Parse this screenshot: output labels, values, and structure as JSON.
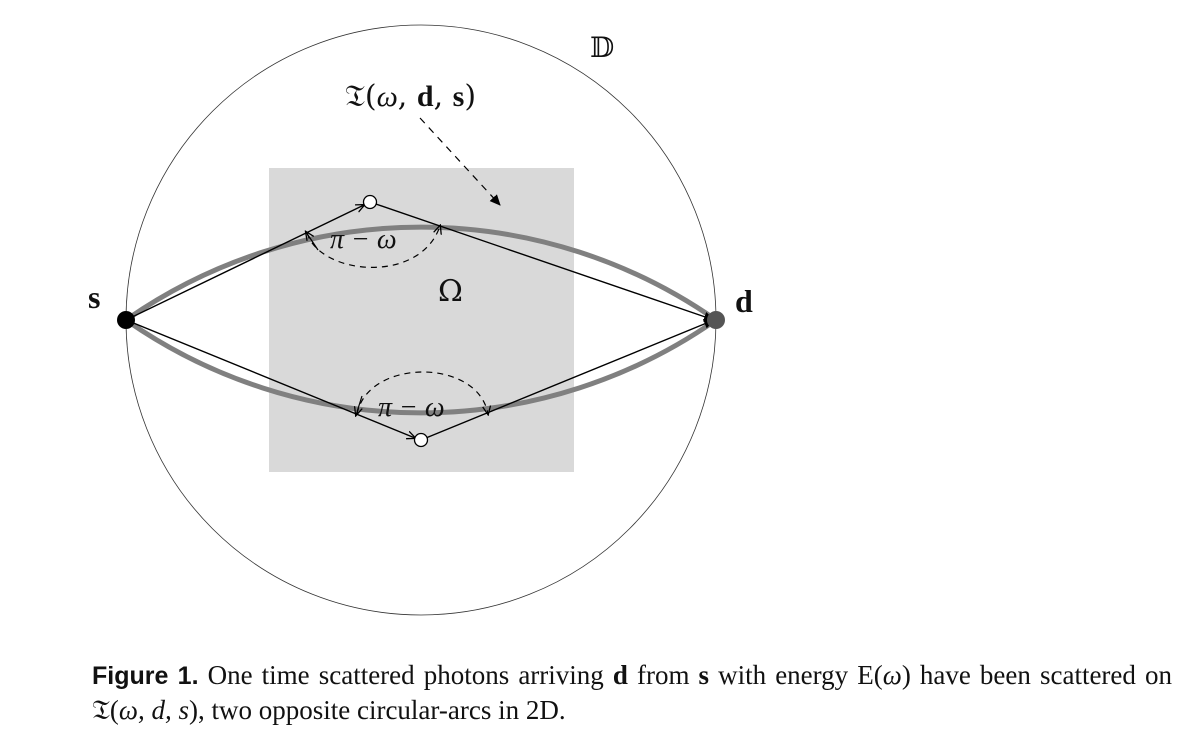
{
  "labels": {
    "domain": "𝔻",
    "region": "Ω",
    "source": "s",
    "detector": "d",
    "curve_prefix": "𝔗(",
    "curve_omega": "ω",
    "curve_sep1": ", ",
    "curve_d": "d",
    "curve_sep2": ", ",
    "curve_s": "s",
    "curve_suffix": ")",
    "angle_top": "π − ω",
    "angle_bottom": "π − ω"
  },
  "caption": {
    "label": "Figure 1.",
    "t1": " One time scattered photons arriving ",
    "t2": "d",
    "t3": " from ",
    "t4": "s",
    "t5": " with energy E(",
    "t6": "ω",
    "t7": ") have been scattered on ",
    "t8": "𝔗",
    "t9": "(",
    "t10": "ω, d, s",
    "t11": "), two opposite circular-arcs in 2D."
  },
  "colors": {
    "region_fill": "#d9d9d9",
    "arc_stroke": "#808080",
    "line_stroke": "#000000"
  }
}
